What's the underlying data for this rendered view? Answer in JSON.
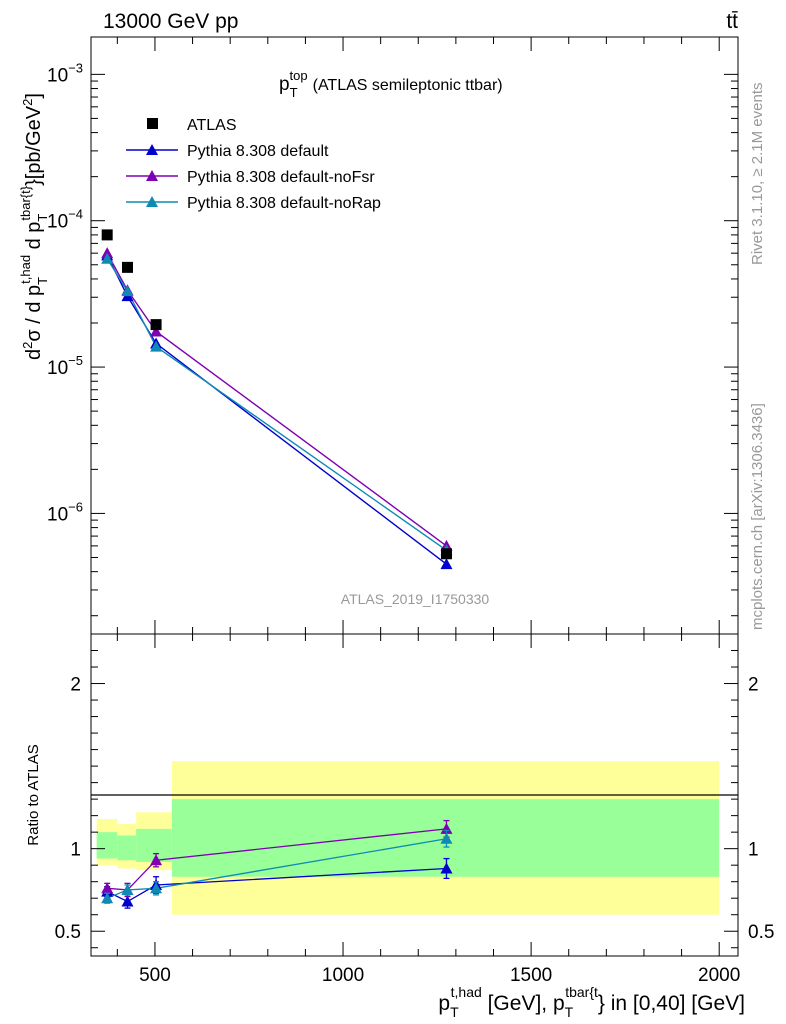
{
  "header": {
    "left": "13000 GeV pp",
    "right": "tt̄"
  },
  "side_labels": {
    "rivet": "Rivet 3.1.10, ≥ 2.1M events",
    "mcplots": "mcplots.cern.ch [arXiv:1306.3436]"
  },
  "chart_data": [
    {
      "type": "line",
      "panel": "main",
      "title_main": "p",
      "title_sub": "T",
      "title_sup": "top",
      "title_rest": "(ATLAS semileptonic ttbar)",
      "watermark": "ATLAS_2019_I1750330",
      "ylabel": "d²σ / d pT^t,had d pT^tbar{t}} [pb/GeV²]",
      "yscale": "log",
      "ylim": [
        1.5e-07,
        0.0018
      ],
      "xlim": [
        330,
        2050
      ],
      "y_ticks": [
        {
          "value": 1e-06,
          "mant": "10",
          "exp": "−6"
        },
        {
          "value": 1e-05,
          "mant": "10",
          "exp": "−5"
        },
        {
          "value": 0.0001,
          "mant": "10",
          "exp": "−4"
        },
        {
          "value": 0.001,
          "mant": "10",
          "exp": "−3"
        }
      ],
      "legend_position": "top-left",
      "legend": [
        {
          "label": "ATLAS",
          "marker": "square",
          "color": "#000000"
        },
        {
          "label": "Pythia 8.308 default",
          "marker": "triangle",
          "color": "#0000cc"
        },
        {
          "label": "Pythia 8.308 default-noFsr",
          "marker": "triangle",
          "color": "#7f00b2"
        },
        {
          "label": "Pythia 8.308 default-noRap",
          "marker": "triangle",
          "color": "#0f8ab4"
        }
      ],
      "data": {
        "x": [
          373,
          427,
          503,
          1275
        ],
        "atlas": [
          8e-05,
          4.8e-05,
          1.95e-05,
          5.3e-07
        ],
        "series": [
          {
            "name": "Pythia 8.308 default",
            "values": [
              5.8e-05,
              3.05e-05,
              1.45e-05,
              4.5e-07
            ]
          },
          {
            "name": "Pythia 8.308 default-noFsr",
            "values": [
              6e-05,
              3.35e-05,
              1.75e-05,
              6e-07
            ]
          },
          {
            "name": "Pythia 8.308 default-noRap",
            "values": [
              5.5e-05,
              3.3e-05,
              1.38e-05,
              5.6e-07
            ]
          }
        ]
      }
    },
    {
      "type": "line",
      "panel": "ratio",
      "ylabel": "Ratio to ATLAS",
      "ylim": [
        0.35,
        2.3
      ],
      "xlim": [
        330,
        2050
      ],
      "y_ticks": [
        "0.5",
        "1",
        "2"
      ],
      "x_ticks": [
        "500",
        "1000",
        "1500",
        "2000"
      ],
      "xlabel": "pT^t,had [GeV], pT^tbar{t}} in [0,40] [GeV]",
      "bands": {
        "bins": [
          [
            345,
            400
          ],
          [
            400,
            450
          ],
          [
            450,
            545
          ],
          [
            545,
            2000
          ]
        ],
        "yellow": [
          [
            0.9,
            1.18
          ],
          [
            0.88,
            1.15
          ],
          [
            0.87,
            1.22
          ],
          [
            0.6,
            1.53
          ]
        ],
        "green": [
          [
            0.94,
            1.1
          ],
          [
            0.93,
            1.08
          ],
          [
            0.92,
            1.12
          ],
          [
            0.83,
            1.3
          ]
        ]
      },
      "data": {
        "x": [
          373,
          427,
          503,
          1275
        ],
        "series": [
          {
            "name": "Pythia 8.308 default",
            "values": [
              0.74,
              0.68,
              0.78,
              0.88
            ],
            "err": [
              0.03,
              0.04,
              0.05,
              0.06
            ]
          },
          {
            "name": "Pythia 8.308 default-noFsr",
            "values": [
              0.76,
              0.75,
              0.93,
              1.12
            ],
            "err": [
              0.03,
              0.04,
              0.04,
              0.05
            ]
          },
          {
            "name": "Pythia 8.308 default-noRap",
            "values": [
              0.7,
              0.75,
              0.76,
              1.06
            ],
            "err": [
              0.03,
              0.03,
              0.04,
              0.05
            ]
          }
        ]
      }
    }
  ]
}
